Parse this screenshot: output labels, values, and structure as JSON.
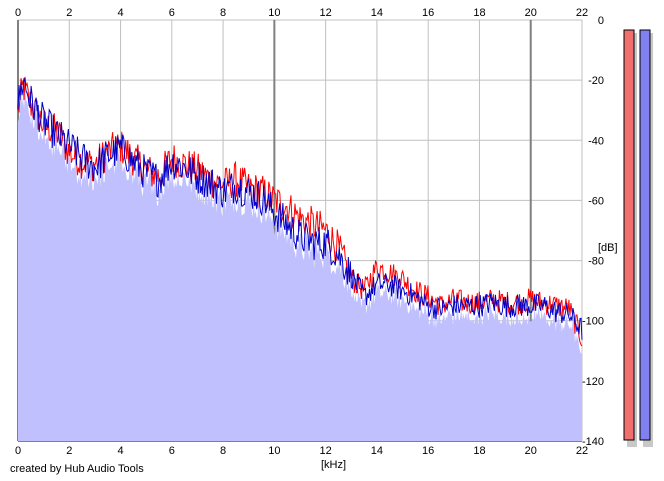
{
  "chart_data": {
    "type": "area",
    "xlabel": "[kHz]",
    "ylabel": "[dB]",
    "xlim": [
      0,
      22
    ],
    "ylim": [
      -140,
      0
    ],
    "x_ticks": [
      0,
      2,
      4,
      6,
      8,
      10,
      12,
      14,
      16,
      18,
      20,
      22
    ],
    "x_tick_labels": [
      "0",
      "2",
      "4",
      "6",
      "8",
      "10",
      "12",
      "14",
      "16",
      "18",
      "20",
      "22"
    ],
    "y_ticks": [
      0,
      -20,
      -40,
      -60,
      -80,
      -100,
      -120,
      -140
    ],
    "y_tick_labels": [
      "0",
      "-20",
      "-40",
      "-60",
      "-80",
      "-100",
      "-120",
      "-140"
    ],
    "grid": true,
    "colors": {
      "fill": "#c0c0ff",
      "red_channel": "#ff0000",
      "blue_channel": "#0000c8",
      "grid": "#c0c0c0",
      "major_grid": "#808080",
      "meter_red": "#f07070",
      "meter_blue": "#8080f0"
    },
    "series": [
      {
        "color": "#ff0000",
        "x": [
          0,
          0.2,
          0.5,
          0.8,
          1,
          1.5,
          2,
          2.5,
          3,
          3.5,
          4,
          4.5,
          5,
          5.5,
          6,
          6.5,
          7,
          7.5,
          8,
          8.5,
          9,
          9.5,
          10,
          10.5,
          11,
          11.5,
          12,
          12.5,
          13,
          13.5,
          14,
          14.5,
          15,
          15.5,
          16,
          16.5,
          17,
          17.5,
          18,
          18.5,
          19,
          19.5,
          20,
          20.5,
          21,
          21.5,
          22
        ],
        "values": [
          -30,
          -22,
          -28,
          -32,
          -35,
          -37,
          -44,
          -47,
          -48,
          -44,
          -42,
          -46,
          -50,
          -52,
          -46,
          -48,
          -50,
          -53,
          -55,
          -53,
          -56,
          -57,
          -60,
          -62,
          -66,
          -68,
          -70,
          -76,
          -86,
          -90,
          -82,
          -84,
          -86,
          -90,
          -92,
          -95,
          -93,
          -94,
          -94,
          -93,
          -94,
          -94,
          -93,
          -94,
          -95,
          -96,
          -106
        ]
      },
      {
        "color": "#0000c8",
        "x": [
          0,
          0.2,
          0.5,
          0.8,
          1,
          1.5,
          2,
          2.5,
          3,
          3.5,
          4,
          4.5,
          5,
          5.5,
          6,
          6.5,
          7,
          7.5,
          8,
          8.5,
          9,
          9.5,
          10,
          10.5,
          11,
          11.5,
          12,
          12.5,
          13,
          13.5,
          14,
          14.5,
          15,
          15.5,
          16,
          16.5,
          17,
          17.5,
          18,
          18.5,
          19,
          19.5,
          20,
          20.5,
          21,
          21.5,
          22
        ],
        "values": [
          -28,
          -20,
          -27,
          -31,
          -34,
          -38,
          -42,
          -46,
          -49,
          -45,
          -43,
          -47,
          -51,
          -53,
          -47,
          -49,
          -52,
          -54,
          -57,
          -55,
          -57,
          -59,
          -64,
          -68,
          -72,
          -74,
          -74,
          -78,
          -85,
          -92,
          -88,
          -88,
          -90,
          -92,
          -95,
          -96,
          -95,
          -95,
          -95,
          -94,
          -95,
          -95,
          -95,
          -95,
          -97,
          -98,
          -103
        ]
      }
    ]
  }
}
